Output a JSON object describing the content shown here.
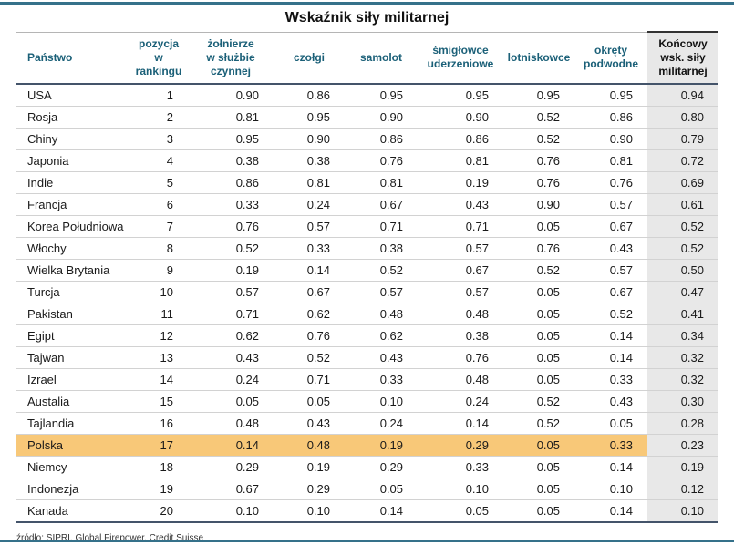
{
  "title": "Wskaźnik siły militarnej",
  "source": "źródło: SIPRI, Global Firepower, Credit Suisse",
  "colors": {
    "header_text": "#1B6078",
    "heavy_rule": "#44546A",
    "page_rule": "#35718A",
    "row_separator": "#d2d2d2",
    "highlight_row_bg": "#F8C878",
    "final_column_bg": "#E8E8E8"
  },
  "chart_data": {
    "type": "table",
    "title": "Wskaźnik siły militarnej",
    "columns": [
      "Państwo",
      "pozycja\nw rankingu",
      "żołnierze\nw służbie\nczynnej",
      "czołgi",
      "samolot",
      "śmigłowce\nuderzeniowe",
      "lotniskowce",
      "okręty\npodwodne",
      "Końcowy\nwsk. siły\nmilitarnej"
    ],
    "rows": [
      [
        "USA",
        1,
        0.9,
        0.86,
        0.95,
        0.95,
        0.95,
        0.95,
        0.94
      ],
      [
        "Rosja",
        2,
        0.81,
        0.95,
        0.9,
        0.9,
        0.52,
        0.86,
        0.8
      ],
      [
        "Chiny",
        3,
        0.95,
        0.9,
        0.86,
        0.86,
        0.52,
        0.9,
        0.79
      ],
      [
        "Japonia",
        4,
        0.38,
        0.38,
        0.76,
        0.81,
        0.76,
        0.81,
        0.72
      ],
      [
        "Indie",
        5,
        0.86,
        0.81,
        0.81,
        0.19,
        0.76,
        0.76,
        0.69
      ],
      [
        "Francja",
        6,
        0.33,
        0.24,
        0.67,
        0.43,
        0.9,
        0.57,
        0.61
      ],
      [
        "Korea Południowa",
        7,
        0.76,
        0.57,
        0.71,
        0.71,
        0.05,
        0.67,
        0.52
      ],
      [
        "Włochy",
        8,
        0.52,
        0.33,
        0.38,
        0.57,
        0.76,
        0.43,
        0.52
      ],
      [
        "Wielka Brytania",
        9,
        0.19,
        0.14,
        0.52,
        0.67,
        0.52,
        0.57,
        0.5
      ],
      [
        "Turcja",
        10,
        0.57,
        0.67,
        0.57,
        0.57,
        0.05,
        0.67,
        0.47
      ],
      [
        "Pakistan",
        11,
        0.71,
        0.62,
        0.48,
        0.48,
        0.05,
        0.52,
        0.41
      ],
      [
        "Egipt",
        12,
        0.62,
        0.76,
        0.62,
        0.38,
        0.05,
        0.14,
        0.34
      ],
      [
        "Tajwan",
        13,
        0.43,
        0.52,
        0.43,
        0.76,
        0.05,
        0.14,
        0.32
      ],
      [
        "Izrael",
        14,
        0.24,
        0.71,
        0.33,
        0.48,
        0.05,
        0.33,
        0.32
      ],
      [
        "Austalia",
        15,
        0.05,
        0.05,
        0.1,
        0.24,
        0.52,
        0.43,
        0.3
      ],
      [
        "Tajlandia",
        16,
        0.48,
        0.43,
        0.24,
        0.14,
        0.52,
        0.05,
        0.28
      ],
      [
        "Polska",
        17,
        0.14,
        0.48,
        0.19,
        0.29,
        0.05,
        0.33,
        0.23
      ],
      [
        "Niemcy",
        18,
        0.29,
        0.19,
        0.29,
        0.33,
        0.05,
        0.14,
        0.19
      ],
      [
        "Indonezja",
        19,
        0.67,
        0.29,
        0.05,
        0.1,
        0.05,
        0.1,
        0.12
      ],
      [
        "Kanada",
        20,
        0.1,
        0.1,
        0.14,
        0.05,
        0.05,
        0.14,
        0.1
      ]
    ],
    "highlighted_row": "Polska",
    "source": "źródło: SIPRI, Global Firepower, Credit Suisse"
  }
}
